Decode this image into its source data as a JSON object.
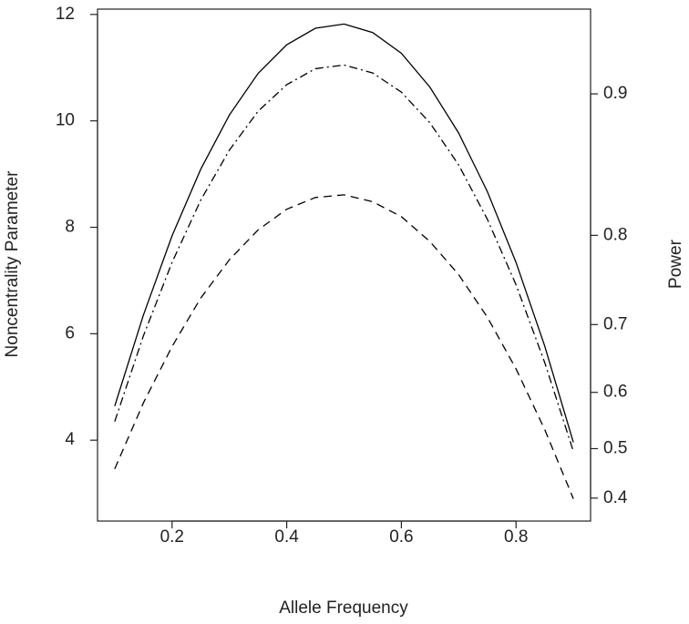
{
  "chart_data": {
    "type": "line",
    "xlabel": "Allele Frequency",
    "ylabel": "Noncentrality Parameter",
    "y2label": "Power",
    "x": [
      0.1,
      0.15,
      0.2,
      0.25,
      0.3,
      0.35,
      0.4,
      0.45,
      0.5,
      0.55,
      0.6,
      0.65,
      0.7,
      0.75,
      0.8,
      0.85,
      0.9
    ],
    "series": [
      {
        "color": "#000000",
        "dash": "solid",
        "values": [
          4.64,
          6.35,
          7.84,
          9.09,
          10.11,
          10.89,
          11.43,
          11.74,
          11.82,
          11.66,
          11.27,
          10.63,
          9.77,
          8.67,
          7.34,
          5.77,
          3.96
        ]
      },
      {
        "color": "#000000",
        "dash": "dashdot",
        "values": [
          4.35,
          5.96,
          7.34,
          8.51,
          9.45,
          10.18,
          10.68,
          10.98,
          11.05,
          10.9,
          10.54,
          9.96,
          9.17,
          8.15,
          6.92,
          5.46,
          3.79
        ]
      },
      {
        "color": "#000000",
        "dash": "dashed",
        "values": [
          3.46,
          4.7,
          5.76,
          6.67,
          7.39,
          7.95,
          8.34,
          8.56,
          8.61,
          8.48,
          8.2,
          7.73,
          7.11,
          6.31,
          5.34,
          4.2,
          2.9
        ]
      }
    ],
    "xlim": [
      0.07,
      0.93
    ],
    "xticks": [
      0.2,
      0.4,
      0.6,
      0.8
    ],
    "ylim": [
      2.48,
      12.1
    ],
    "yticks": [
      4,
      6,
      8,
      10,
      12
    ],
    "y2ticks": [
      0.4,
      0.5,
      0.6,
      0.7,
      0.8,
      0.9
    ],
    "y2_scale": "chisq1-power",
    "grid": false
  }
}
